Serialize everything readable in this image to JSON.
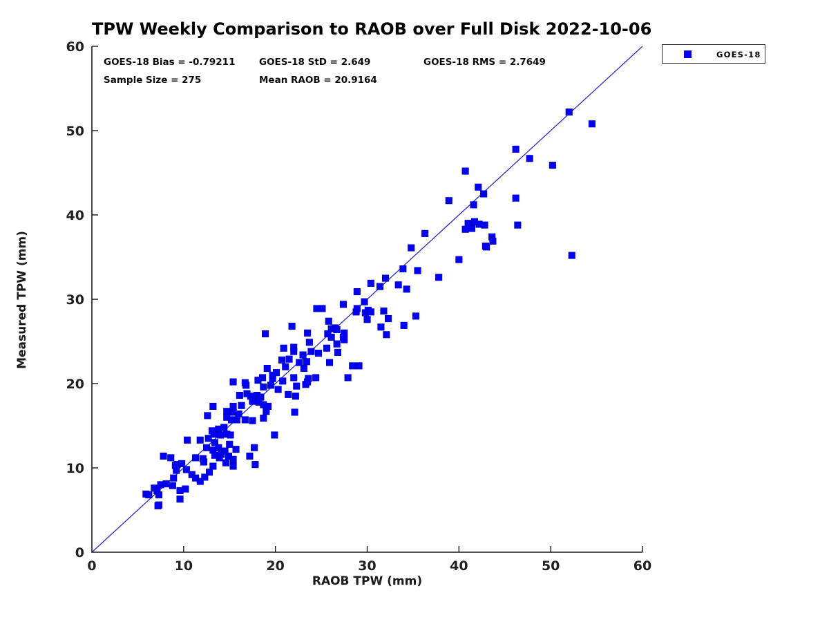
{
  "title": "TPW Weekly Comparison to RAOB over Full Disk 2022-10-06",
  "stats": {
    "bias": "GOES-18 Bias = -0.79211",
    "std": "GOES-18 StD = 2.649",
    "rms": "GOES-18 RMS = 2.7649",
    "sample_size": "Sample Size = 275",
    "mean_raob": "Mean RAOB = 20.9164"
  },
  "legend": {
    "label": "GOES-18"
  },
  "colors": {
    "marker": "#0303f0",
    "marker_edge": "#0000bb",
    "line": "#2a2ad0",
    "axis": "#1a1a1a",
    "tick_label": "#212121"
  },
  "chart_data": {
    "type": "scatter",
    "title": "TPW Weekly Comparison to RAOB over Full Disk 2022-10-06",
    "xlabel": "RAOB TPW (mm)",
    "ylabel": "Measured TPW (mm)",
    "xlim": [
      0,
      60
    ],
    "ylim": [
      0,
      60
    ],
    "xticks": [
      0,
      10,
      20,
      30,
      40,
      50,
      60
    ],
    "yticks": [
      0,
      10,
      20,
      30,
      40,
      50,
      60
    ],
    "grid": false,
    "legend_position": "top-right-outside",
    "reference_line": {
      "type": "identity",
      "from": [
        0,
        0
      ],
      "to": [
        60,
        60
      ]
    },
    "series": [
      {
        "name": "GOES-18",
        "marker": "square",
        "points": [
          [
            5.9,
            6.9
          ],
          [
            6.8,
            7.6
          ],
          [
            7.1,
            7.3
          ],
          [
            7.5,
            8.0
          ],
          [
            7.3,
            5.6
          ],
          [
            6.2,
            6.8
          ],
          [
            7.3,
            6.8
          ],
          [
            7.2,
            5.5
          ],
          [
            8.1,
            8.1
          ],
          [
            8.8,
            7.9
          ],
          [
            9.6,
            7.3
          ],
          [
            10.2,
            7.5
          ],
          [
            9.6,
            6.3
          ],
          [
            8.9,
            8.8
          ],
          [
            9.2,
            9.7
          ],
          [
            9.3,
            10.4
          ],
          [
            9.8,
            10.5
          ],
          [
            9.1,
            10.3
          ],
          [
            7.8,
            11.4
          ],
          [
            8.6,
            11.2
          ],
          [
            10.3,
            9.8
          ],
          [
            10.9,
            9.2
          ],
          [
            11.3,
            8.8
          ],
          [
            11.8,
            8.4
          ],
          [
            12.3,
            8.9
          ],
          [
            12.8,
            9.5
          ],
          [
            11.3,
            11.2
          ],
          [
            12.1,
            11.1
          ],
          [
            10.4,
            13.3
          ],
          [
            11.8,
            13.3
          ],
          [
            12.6,
            16.2
          ],
          [
            13.2,
            17.3
          ],
          [
            12.7,
            13.5
          ],
          [
            12.5,
            12.4
          ],
          [
            13.2,
            12.1
          ],
          [
            13.4,
            13.0
          ],
          [
            13.8,
            12.4
          ],
          [
            12.2,
            10.7
          ],
          [
            13.2,
            10.2
          ],
          [
            13.9,
            11.2
          ],
          [
            14.9,
            11.4
          ],
          [
            15.4,
            11.0
          ],
          [
            14.6,
            10.6
          ],
          [
            15.4,
            10.2
          ],
          [
            14.1,
            11.6
          ],
          [
            14.5,
            12.0
          ],
          [
            15.0,
            12.8
          ],
          [
            15.7,
            12.2
          ],
          [
            13.4,
            11.5
          ],
          [
            17.2,
            11.4
          ],
          [
            17.8,
            10.4
          ],
          [
            17.7,
            12.4
          ],
          [
            19.9,
            13.9
          ],
          [
            13.3,
            14.0
          ],
          [
            13.8,
            14.6
          ],
          [
            14.4,
            14.8
          ],
          [
            14.0,
            13.9
          ],
          [
            14.7,
            14.0
          ],
          [
            15.1,
            13.9
          ],
          [
            13.1,
            14.4
          ],
          [
            14.7,
            16.7
          ],
          [
            15.4,
            16.6
          ],
          [
            16.0,
            16.4
          ],
          [
            14.7,
            16.0
          ],
          [
            15.2,
            15.7
          ],
          [
            15.8,
            15.7
          ],
          [
            16.7,
            15.7
          ],
          [
            17.5,
            15.6
          ],
          [
            15.4,
            17.3
          ],
          [
            16.3,
            17.4
          ],
          [
            19.0,
            16.7
          ],
          [
            22.1,
            16.6
          ],
          [
            18.7,
            15.9
          ],
          [
            16.1,
            18.6
          ],
          [
            16.9,
            18.8
          ],
          [
            17.3,
            18.5
          ],
          [
            18.0,
            18.6
          ],
          [
            18.4,
            18.4
          ],
          [
            17.5,
            17.9
          ],
          [
            18.2,
            17.8
          ],
          [
            18.7,
            17.5
          ],
          [
            19.2,
            17.3
          ],
          [
            21.4,
            18.7
          ],
          [
            22.2,
            18.5
          ],
          [
            16.8,
            19.8
          ],
          [
            18.7,
            19.6
          ],
          [
            19.5,
            19.8
          ],
          [
            20.3,
            19.3
          ],
          [
            22.3,
            19.7
          ],
          [
            23.3,
            19.9
          ],
          [
            15.4,
            20.2
          ],
          [
            18.1,
            20.4
          ],
          [
            19.7,
            20.6
          ],
          [
            20.8,
            20.3
          ],
          [
            22.0,
            20.7
          ],
          [
            23.5,
            20.2
          ],
          [
            16.7,
            20.1
          ],
          [
            23.6,
            20.6
          ],
          [
            24.4,
            20.7
          ],
          [
            27.9,
            20.7
          ],
          [
            19.7,
            21.0
          ],
          [
            20.1,
            21.3
          ],
          [
            21.1,
            22.0
          ],
          [
            19.1,
            21.8
          ],
          [
            18.6,
            20.7
          ],
          [
            20.7,
            22.8
          ],
          [
            21.5,
            22.9
          ],
          [
            22.6,
            22.5
          ],
          [
            23.4,
            22.6
          ],
          [
            23.1,
            21.8
          ],
          [
            25.9,
            22.5
          ],
          [
            28.4,
            22.1
          ],
          [
            29.1,
            22.1
          ],
          [
            20.9,
            24.2
          ],
          [
            22.0,
            24.3
          ],
          [
            22.0,
            23.8
          ],
          [
            23.0,
            23.4
          ],
          [
            23.5,
            26.0
          ],
          [
            18.9,
            25.9
          ],
          [
            21.8,
            26.8
          ],
          [
            23.7,
            24.9
          ],
          [
            23.9,
            23.8
          ],
          [
            24.7,
            23.6
          ],
          [
            25.6,
            24.2
          ],
          [
            26.7,
            24.7
          ],
          [
            26.8,
            23.7
          ],
          [
            25.7,
            25.9
          ],
          [
            26.1,
            25.5
          ],
          [
            27.5,
            25.2
          ],
          [
            26.1,
            26.5
          ],
          [
            26.5,
            26.6
          ],
          [
            26.7,
            26.4
          ],
          [
            27.5,
            26.0
          ],
          [
            27.4,
            25.5
          ],
          [
            32.1,
            25.8
          ],
          [
            25.8,
            27.4
          ],
          [
            24.5,
            28.9
          ],
          [
            25.1,
            28.9
          ],
          [
            27.4,
            29.4
          ],
          [
            28.8,
            28.5
          ],
          [
            28.9,
            28.9
          ],
          [
            29.8,
            28.4
          ],
          [
            30.1,
            28.7
          ],
          [
            30.4,
            28.5
          ],
          [
            31.8,
            28.6
          ],
          [
            30.0,
            27.6
          ],
          [
            32.3,
            27.7
          ],
          [
            35.3,
            28.0
          ],
          [
            31.5,
            26.7
          ],
          [
            34.0,
            26.9
          ],
          [
            29.7,
            29.7
          ],
          [
            28.9,
            30.9
          ],
          [
            30.4,
            31.9
          ],
          [
            31.4,
            31.5
          ],
          [
            32.0,
            32.5
          ],
          [
            33.4,
            31.7
          ],
          [
            34.3,
            31.2
          ],
          [
            33.9,
            33.6
          ],
          [
            35.5,
            33.4
          ],
          [
            37.8,
            32.6
          ],
          [
            40.0,
            34.7
          ],
          [
            34.8,
            36.1
          ],
          [
            36.3,
            37.8
          ],
          [
            52.3,
            35.2
          ],
          [
            38.9,
            41.7
          ],
          [
            41.6,
            41.2
          ],
          [
            40.7,
            45.2
          ],
          [
            42.1,
            43.3
          ],
          [
            42.7,
            42.5
          ],
          [
            46.2,
            42.0
          ],
          [
            46.2,
            47.8
          ],
          [
            47.7,
            46.7
          ],
          [
            50.2,
            45.9
          ],
          [
            52.0,
            52.2
          ],
          [
            54.5,
            50.8
          ],
          [
            41.0,
            39.0
          ],
          [
            41.7,
            39.2
          ],
          [
            42.2,
            38.9
          ],
          [
            40.7,
            38.3
          ],
          [
            41.4,
            38.4
          ],
          [
            42.8,
            38.8
          ],
          [
            46.4,
            38.8
          ],
          [
            43.6,
            37.4
          ],
          [
            43.7,
            36.9
          ],
          [
            43.0,
            36.2
          ],
          [
            42.9,
            36.3
          ]
        ]
      }
    ]
  }
}
